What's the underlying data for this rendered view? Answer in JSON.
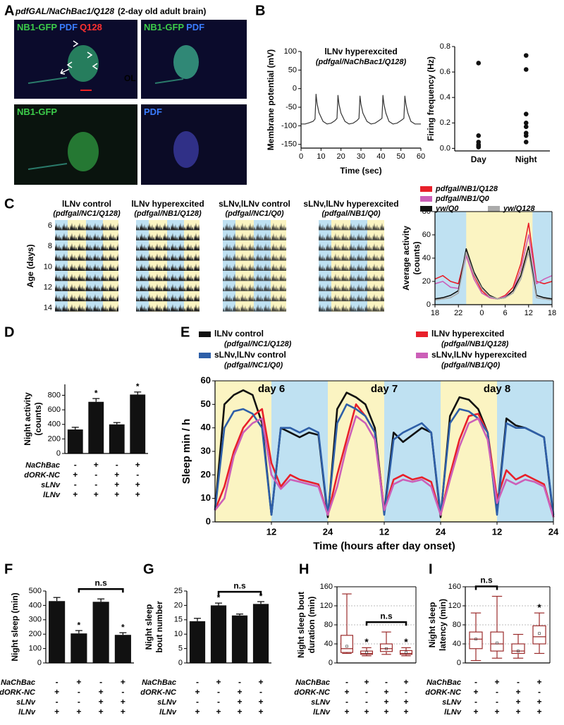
{
  "figure": {
    "panel_labels": [
      "A",
      "B",
      "C",
      "D",
      "E",
      "F",
      "G",
      "H",
      "I"
    ],
    "A": {
      "title_genotype": "pdfGAL/NaChBac1/Q128",
      "title_note": "(2-day old adult brain)",
      "images": [
        {
          "labels": [
            {
              "text": "NB1-GFP",
              "color": "#3ccc4a"
            },
            {
              "text": "PDF",
              "color": "#3a7cff"
            },
            {
              "text": "Q128",
              "color": "#ff3030"
            }
          ]
        },
        {
          "labels": [
            {
              "text": "NB1-GFP",
              "color": "#3ccc4a"
            },
            {
              "text": "PDF",
              "color": "#3a7cff"
            }
          ]
        },
        {
          "labels": [
            {
              "text": "NB1-GFP",
              "color": "#3ccc4a"
            }
          ]
        },
        {
          "labels": [
            {
              "text": "PDF",
              "color": "#3a7cff"
            }
          ]
        }
      ],
      "region_label": "OL"
    },
    "C": {
      "actograms": [
        {
          "title": "lLNv control",
          "genotype": "(pdfgal/NC1/Q128)"
        },
        {
          "title": "lLNv hyperexcited",
          "genotype": "(pdfgal/NB1/Q128)"
        },
        {
          "title": "sLNv,lLNv control",
          "genotype": "(pdfgal/NC1/Q0)"
        },
        {
          "title": "sLNv,lLNv hyperexcited",
          "genotype": "(pdfgal/NB1/Q0)"
        }
      ],
      "age_label": "Age (days)",
      "age_ticks": [
        6,
        8,
        10,
        12,
        14
      ]
    }
  },
  "chart_data": [
    {
      "type": "line",
      "title": "lLNv hyperexcited",
      "subtitle": "(pdfgal/NaChBac1/Q128)",
      "x_label": "Time (sec)",
      "y_label": [
        "Membrane potential (mV)"
      ],
      "color": "#333333",
      "xlim": [
        0,
        60
      ],
      "xticks": [
        0,
        10,
        20,
        30,
        40,
        50,
        60
      ],
      "ylim": [
        -160,
        100
      ],
      "yticks": [
        -150,
        -100,
        -50,
        0,
        50,
        100
      ],
      "x": [
        0,
        2,
        4,
        6,
        7,
        7.5,
        8,
        9,
        11,
        13,
        15,
        17,
        18,
        18.5,
        19,
        20,
        22,
        24,
        26,
        28,
        29,
        29.5,
        30,
        31,
        33,
        35,
        37,
        39,
        40.5,
        41,
        41.5,
        42.5,
        44,
        46,
        48,
        50,
        51.5,
        52,
        52.5,
        53.5,
        55,
        57,
        60
      ],
      "values": [
        -95,
        -95,
        -92,
        -88,
        -82,
        -15,
        -40,
        -65,
        -88,
        -95,
        -93,
        -86,
        -80,
        -18,
        -42,
        -66,
        -88,
        -95,
        -93,
        -86,
        -80,
        -20,
        -42,
        -66,
        -88,
        -95,
        -93,
        -86,
        -80,
        -18,
        -42,
        -66,
        -88,
        -95,
        -93,
        -86,
        -80,
        -20,
        -42,
        -66,
        -88,
        -95,
        -95
      ]
    },
    {
      "type": "scatter",
      "y_label": [
        "Firing frequency (Hz)"
      ],
      "color": "#111111",
      "categories": [
        "Day",
        "Night"
      ],
      "values": [
        [
          0.67,
          0.1,
          0.05,
          0.03,
          0.02,
          0.01
        ],
        [
          0.73,
          0.62,
          0.27,
          0.2,
          0.17,
          0.12,
          0.1,
          0.05
        ]
      ],
      "ylim": [
        -0.02,
        0.8
      ],
      "yticks": [
        {
          "value": 0,
          "label": "0.0"
        },
        0.2,
        0.4,
        0.6,
        0.8
      ]
    },
    {
      "type": "line",
      "y_label": [
        "Average activity",
        "(counts)"
      ],
      "xlim": [
        0,
        30
      ],
      "xticks": [
        {
          "value": 0,
          "label": "18"
        },
        {
          "value": 6,
          "label": "22"
        },
        {
          "value": 12,
          "label": "0"
        },
        {
          "value": 18,
          "label": "6"
        },
        {
          "value": 24,
          "label": "12"
        },
        {
          "value": 30,
          "label": "18"
        }
      ],
      "ylim": [
        0,
        80
      ],
      "yticks": [
        0,
        20,
        40,
        60,
        80
      ],
      "light_periods": [
        [
          8,
          25
        ]
      ],
      "x": [
        0,
        2,
        4,
        6,
        8,
        10,
        12,
        14,
        16,
        18,
        20,
        22,
        24,
        26,
        28,
        30
      ],
      "series": [
        {
          "name": "pdfgal/NB1/Q128",
          "color": "#e8202a",
          "values": [
            22,
            25,
            20,
            18,
            45,
            25,
            12,
            6,
            5,
            8,
            15,
            35,
            70,
            20,
            18,
            20
          ]
        },
        {
          "name": "pdfgal/NB1/Q0",
          "color": "#cc5fb8",
          "values": [
            18,
            20,
            15,
            14,
            42,
            22,
            10,
            6,
            5,
            7,
            12,
            30,
            60,
            18,
            22,
            25
          ]
        },
        {
          "name": "yw/Q0",
          "color": "#111111",
          "values": [
            5,
            6,
            8,
            12,
            48,
            28,
            15,
            8,
            5,
            6,
            12,
            25,
            50,
            8,
            6,
            5
          ]
        },
        {
          "name": "yw/Q128",
          "color": "#aaaaaa",
          "values": [
            4,
            5,
            6,
            10,
            45,
            26,
            14,
            7,
            5,
            6,
            10,
            22,
            45,
            6,
            5,
            4
          ]
        }
      ]
    },
    {
      "type": "bar",
      "y_label": [
        "Night activity",
        "(counts)"
      ],
      "color": "#111111",
      "values": [
        330,
        710,
        400,
        810
      ],
      "errors": [
        30,
        45,
        25,
        35
      ],
      "significance": [
        null,
        "*",
        null,
        "*"
      ],
      "ylim": [
        0,
        950
      ],
      "yticks": [
        0,
        200,
        400,
        600,
        800
      ],
      "genotypes": {
        "rows": [
          "NaChBac",
          "dORK-NC",
          "sLNv",
          "lLNv"
        ],
        "signs": [
          [
            "-",
            "+",
            "-",
            "+"
          ],
          [
            "+",
            "-",
            "+",
            "-"
          ],
          [
            "-",
            "-",
            "+",
            "+"
          ],
          [
            "+",
            "+",
            "+",
            "+"
          ]
        ]
      }
    },
    {
      "type": "line",
      "y_label": [
        "Sleep min / h"
      ],
      "x_label": "Time (hours after day onset)",
      "xlim": [
        0,
        72
      ],
      "xticks": [
        12,
        24,
        {
          "value": 36,
          "label": "12"
        },
        {
          "value": 48,
          "label": "24"
        },
        {
          "value": 60,
          "label": "12"
        },
        {
          "value": 72,
          "label": "24"
        }
      ],
      "ylim": [
        0,
        60
      ],
      "yticks": [
        0,
        10,
        20,
        30,
        40,
        50,
        60
      ],
      "light_periods": [
        [
          0,
          12
        ],
        [
          24,
          36
        ],
        [
          48,
          60
        ]
      ],
      "day_labels": [
        "day 6",
        "day 7",
        "day 8"
      ],
      "x": [
        0,
        2,
        4,
        6,
        8,
        10,
        12,
        14,
        16,
        18,
        20,
        22,
        24,
        26,
        28,
        30,
        32,
        34,
        36,
        38,
        40,
        42,
        44,
        46,
        48,
        50,
        52,
        54,
        56,
        58,
        60,
        62,
        64,
        66,
        68,
        70,
        72
      ],
      "series": [
        {
          "name": "lLNv control",
          "genotype": "(pdfgal/NC1/Q128)",
          "color": "#111111",
          "values": [
            5,
            50,
            54,
            56,
            54,
            42,
            3,
            40,
            38,
            36,
            38,
            37,
            2,
            48,
            55,
            53,
            50,
            40,
            4,
            38,
            34,
            37,
            40,
            38,
            2,
            45,
            53,
            52,
            48,
            38,
            4,
            44,
            41,
            40,
            38,
            36,
            2
          ]
        },
        {
          "name": "lLNv hyperexcited",
          "genotype": "(pdfgal/NB1/Q128)",
          "color": "#e8202a",
          "values": [
            5,
            15,
            30,
            40,
            45,
            48,
            25,
            15,
            20,
            18,
            17,
            16,
            3,
            20,
            35,
            50,
            45,
            38,
            5,
            18,
            20,
            18,
            19,
            17,
            3,
            20,
            35,
            45,
            46,
            38,
            10,
            22,
            18,
            20,
            18,
            16,
            2
          ]
        },
        {
          "name": "sLNv,lLNv control",
          "genotype": "(pdfgal/NC1/Q0)",
          "color": "#2e5fa8",
          "values": [
            5,
            40,
            47,
            48,
            46,
            40,
            3,
            40,
            40,
            38,
            40,
            38,
            3,
            42,
            50,
            48,
            45,
            38,
            3,
            35,
            38,
            40,
            42,
            38,
            3,
            42,
            48,
            47,
            44,
            38,
            3,
            42,
            40,
            40,
            38,
            36,
            3
          ]
        },
        {
          "name": "sLNv,lLNv hyperexcited",
          "genotype": "(pdfgal/NB1/Q0)",
          "color": "#cc5fb8",
          "values": [
            5,
            10,
            28,
            38,
            42,
            44,
            20,
            14,
            18,
            17,
            16,
            15,
            3,
            15,
            32,
            45,
            42,
            35,
            5,
            16,
            18,
            17,
            18,
            15,
            3,
            18,
            32,
            42,
            44,
            35,
            8,
            18,
            16,
            18,
            17,
            15,
            2
          ]
        }
      ]
    },
    {
      "type": "bar",
      "y_label": [
        "Night sleep (min)"
      ],
      "color": "#111111",
      "values": [
        430,
        205,
        425,
        195
      ],
      "errors": [
        25,
        20,
        20,
        15
      ],
      "significance": [
        null,
        "*",
        null,
        "*"
      ],
      "comparison": {
        "label": "n.s",
        "between": [
          1,
          3
        ]
      },
      "ylim": [
        0,
        500
      ],
      "yticks": [
        0,
        100,
        200,
        300,
        400,
        500
      ],
      "genotypes": {
        "rows": [
          "NaChBac",
          "dORK-NC",
          "sLNv",
          "lLNv"
        ],
        "signs": [
          [
            "-",
            "+",
            "-",
            "+"
          ],
          [
            "+",
            "-",
            "+",
            "-"
          ],
          [
            "-",
            "-",
            "+",
            "+"
          ],
          [
            "+",
            "+",
            "+",
            "+"
          ]
        ]
      }
    },
    {
      "type": "bar",
      "y_label": [
        "Night sleep",
        "bout number"
      ],
      "color": "#111111",
      "values": [
        14.5,
        20,
        16.5,
        20.5
      ],
      "errors": [
        1,
        0.8,
        0.5,
        0.8
      ],
      "significance": [
        null,
        "*",
        null,
        "*"
      ],
      "comparison": {
        "label": "n.s",
        "between": [
          1,
          3
        ]
      },
      "ylim": [
        0,
        25
      ],
      "yticks": [
        0,
        5,
        10,
        15,
        20,
        25
      ],
      "genotypes": {
        "rows": [
          "NaChBac",
          "dORK-NC",
          "sLNv",
          "lLNv"
        ],
        "signs": [
          [
            "-",
            "+",
            "-",
            "+"
          ],
          [
            "+",
            "-",
            "+",
            "-"
          ],
          [
            "-",
            "-",
            "+",
            "+"
          ],
          [
            "+",
            "+",
            "+",
            "+"
          ]
        ]
      }
    },
    {
      "type": "box",
      "y_label": [
        "Night sleep bout",
        "duration (min)"
      ],
      "color": "#9b2b2b",
      "grid": true,
      "boxes": [
        {
          "min": 20,
          "q1": 22,
          "median": 30,
          "q3": 58,
          "max": 145,
          "mean": 35
        },
        {
          "min": 15,
          "q1": 18,
          "median": 20,
          "q3": 25,
          "max": 32,
          "mean": 22
        },
        {
          "min": 18,
          "q1": 24,
          "median": 30,
          "q3": 40,
          "max": 65,
          "mean": 30
        },
        {
          "min": 15,
          "q1": 18,
          "median": 20,
          "q3": 26,
          "max": 32,
          "mean": 22
        }
      ],
      "significance": [
        null,
        "*",
        null,
        "*"
      ],
      "comparison": {
        "label": "n.s",
        "between": [
          1,
          3
        ]
      },
      "ylim": [
        0,
        160
      ],
      "yticks": [
        0,
        40,
        80,
        120,
        160
      ],
      "genotypes": {
        "rows": [
          "NaChBac",
          "dORK-NC",
          "sLNv",
          "lLNv"
        ],
        "signs": [
          [
            "-",
            "+",
            "-",
            "+"
          ],
          [
            "+",
            "-",
            "+",
            "-"
          ],
          [
            "-",
            "-",
            "+",
            "+"
          ],
          [
            "+",
            "+",
            "+",
            "+"
          ]
        ]
      }
    },
    {
      "type": "box",
      "y_label": [
        "Night sleep",
        "latency (min)"
      ],
      "color": "#9b2b2b",
      "grid": true,
      "boxes": [
        {
          "min": 5,
          "q1": 30,
          "median": 50,
          "q3": 65,
          "max": 105,
          "mean": 50
        },
        {
          "min": 10,
          "q1": 25,
          "median": 40,
          "q3": 65,
          "max": 140,
          "mean": 42
        },
        {
          "min": 10,
          "q1": 20,
          "median": 25,
          "q3": 40,
          "max": 60,
          "mean": 25
        },
        {
          "min": 20,
          "q1": 40,
          "median": 55,
          "q3": 78,
          "max": 105,
          "mean": 62
        }
      ],
      "significance": [
        null,
        null,
        null,
        "*"
      ],
      "comparison": {
        "label": "n.s",
        "between": [
          0,
          1
        ]
      },
      "ylim": [
        0,
        160
      ],
      "yticks": [
        0,
        40,
        80,
        120,
        160
      ],
      "genotypes": {
        "rows": [
          "NaChBac",
          "dORK-NC",
          "sLNv",
          "lLNv"
        ],
        "signs": [
          [
            "-",
            "+",
            "-",
            "+"
          ],
          [
            "+",
            "-",
            "+",
            "-"
          ],
          [
            "-",
            "-",
            "+",
            "+"
          ],
          [
            "+",
            "+",
            "+",
            "+"
          ]
        ]
      }
    }
  ]
}
